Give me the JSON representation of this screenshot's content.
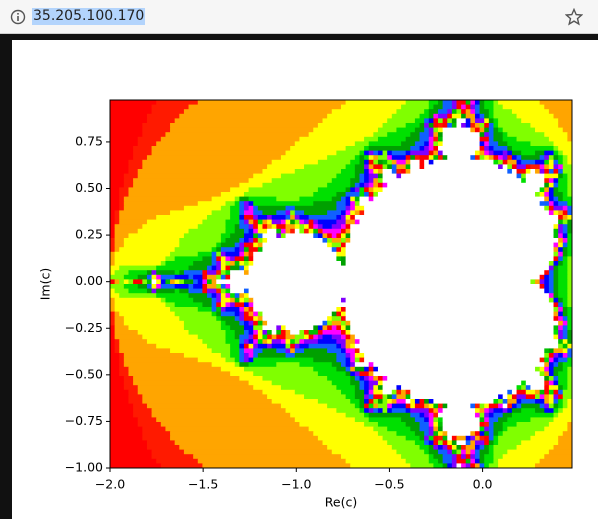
{
  "browser": {
    "url": "35.205.100.170"
  },
  "chart_data": {
    "type": "image",
    "xlabel": "Re(c)",
    "ylabel": "Im(c)",
    "xlim": [
      -2.0,
      0.48
    ],
    "ylim": [
      -1.0,
      0.975
    ],
    "xticks": [
      {
        "value": -2.0,
        "label": "−2.0"
      },
      {
        "value": -1.5,
        "label": "−1.5"
      },
      {
        "value": -1.0,
        "label": "−1.0"
      },
      {
        "value": -0.5,
        "label": "−0.5"
      },
      {
        "value": 0.0,
        "label": "0.0"
      }
    ],
    "yticks": [
      {
        "value": -1.0,
        "label": "−1.00"
      },
      {
        "value": -0.75,
        "label": "−0.75"
      },
      {
        "value": -0.5,
        "label": "−0.50"
      },
      {
        "value": -0.25,
        "label": "−0.25"
      },
      {
        "value": 0.0,
        "label": "0.00"
      },
      {
        "value": 0.25,
        "label": "0.25"
      },
      {
        "value": 0.5,
        "label": "0.50"
      },
      {
        "value": 0.75,
        "label": "0.75"
      }
    ]
  }
}
